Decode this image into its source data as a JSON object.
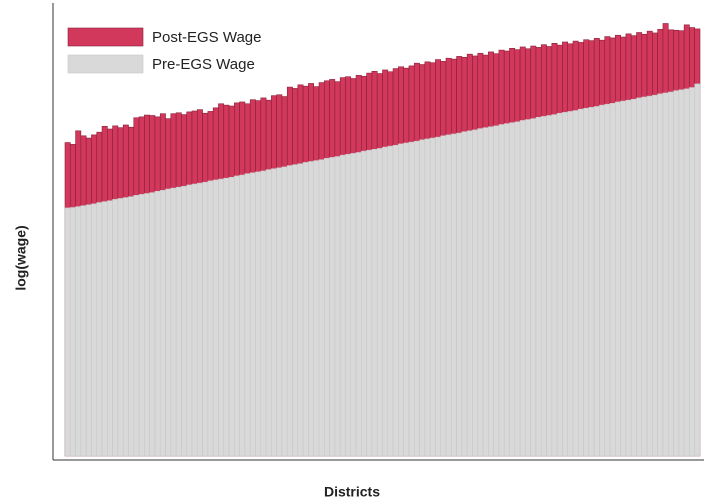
{
  "chart_data": {
    "type": "bar",
    "x_label": "Districts",
    "y_label": "log(wage)",
    "legend": "upper left",
    "ylim": [
      0,
      100
    ],
    "categories": [
      null,
      null,
      null,
      null,
      null,
      null,
      null,
      null,
      null,
      null,
      null,
      null,
      null,
      null,
      null,
      null,
      null,
      null,
      null,
      null,
      null,
      null,
      null,
      null,
      null,
      null,
      null,
      null,
      null,
      null,
      null,
      null,
      null,
      null,
      null,
      null,
      null,
      null,
      null,
      null,
      null,
      null,
      null,
      null,
      null,
      null,
      null,
      null,
      null,
      null,
      null,
      null,
      null,
      null,
      null,
      null,
      null,
      null,
      null,
      null,
      null,
      null,
      null,
      null,
      null,
      null,
      null,
      null,
      null,
      null,
      null,
      null,
      null,
      null,
      null,
      null,
      null,
      null,
      null,
      null,
      null,
      null,
      null,
      null,
      null,
      null,
      null,
      null,
      null,
      null,
      null,
      null,
      null,
      null,
      null,
      null,
      null,
      null,
      null,
      null,
      null,
      null,
      null,
      null,
      null,
      null,
      null,
      null,
      null,
      null,
      null,
      null,
      null,
      null,
      null,
      null,
      null,
      null,
      null,
      null
    ],
    "series": [
      {
        "name": "Post-EGS Wage",
        "color": "#d2385c",
        "values": [
          69.5,
          69.1,
          72.1,
          71.0,
          70.5,
          71.2,
          71.8,
          73.1,
          72.5,
          73.2,
          72.8,
          73.4,
          72.9,
          75.0,
          75.2,
          75.6,
          75.5,
          75.2,
          75.9,
          74.8,
          75.9,
          76.1,
          75.7,
          76.3,
          76.5,
          76.8,
          76.0,
          76.4,
          77.2,
          78.1,
          77.8,
          77.6,
          78.3,
          78.5,
          78.1,
          79.0,
          78.8,
          79.4,
          78.9,
          79.9,
          80.1,
          79.7,
          81.8,
          81.5,
          82.3,
          82.0,
          82.6,
          81.9,
          82.8,
          83.2,
          83.5,
          83.0,
          83.9,
          84.1,
          83.7,
          84.4,
          84.2,
          84.9,
          85.3,
          84.8,
          85.6,
          85.2,
          85.9,
          86.3,
          86.0,
          86.5,
          87.1,
          86.8,
          87.4,
          87.2,
          87.9,
          87.5,
          88.2,
          88.0,
          88.6,
          88.4,
          89.1,
          88.7,
          89.3,
          88.9,
          89.6,
          89.2,
          90.0,
          89.8,
          90.4,
          90.1,
          90.7,
          90.3,
          90.9,
          90.6,
          91.2,
          90.8,
          91.5,
          91.1,
          91.8,
          91.4,
          92.0,
          91.7,
          92.3,
          92.1,
          92.6,
          92.2,
          93.0,
          92.7,
          93.3,
          92.9,
          93.6,
          93.2,
          93.9,
          93.5,
          94.2,
          93.8,
          94.6,
          95.9,
          94.5,
          94.4,
          94.3,
          95.6,
          95.0,
          94.7
        ]
      },
      {
        "name": "Pre-EGS Wage",
        "color": "#d9d9d9",
        "values": [
          55.0,
          55.1,
          55.3,
          55.5,
          55.7,
          55.9,
          56.2,
          56.4,
          56.6,
          56.9,
          57.1,
          57.3,
          57.5,
          57.8,
          58.0,
          58.2,
          58.4,
          58.7,
          58.9,
          59.2,
          59.4,
          59.6,
          59.8,
          60.1,
          60.3,
          60.5,
          60.7,
          61.0,
          61.2,
          61.4,
          61.6,
          61.8,
          62.1,
          62.3,
          62.6,
          62.8,
          63.0,
          63.2,
          63.5,
          63.7,
          63.9,
          64.1,
          64.4,
          64.6,
          64.8,
          65.1,
          65.3,
          65.5,
          65.7,
          66.0,
          66.2,
          66.4,
          66.7,
          66.9,
          67.1,
          67.3,
          67.6,
          67.8,
          68.0,
          68.2,
          68.5,
          68.7,
          68.9,
          69.2,
          69.4,
          69.6,
          69.8,
          70.1,
          70.3,
          70.5,
          70.7,
          71.0,
          71.2,
          71.4,
          71.6,
          71.9,
          72.1,
          72.3,
          72.6,
          72.8,
          73.0,
          73.2,
          73.5,
          73.7,
          73.9,
          74.1,
          74.4,
          74.6,
          74.8,
          75.1,
          75.3,
          75.5,
          75.7,
          76.0,
          76.2,
          76.4,
          76.6,
          76.9,
          77.1,
          77.3,
          77.5,
          77.8,
          78.0,
          78.2,
          78.5,
          78.7,
          78.9,
          79.1,
          79.4,
          79.6,
          79.8,
          80.0,
          80.3,
          80.5,
          80.7,
          81.0,
          81.2,
          81.4,
          81.7,
          82.5
        ]
      }
    ]
  }
}
